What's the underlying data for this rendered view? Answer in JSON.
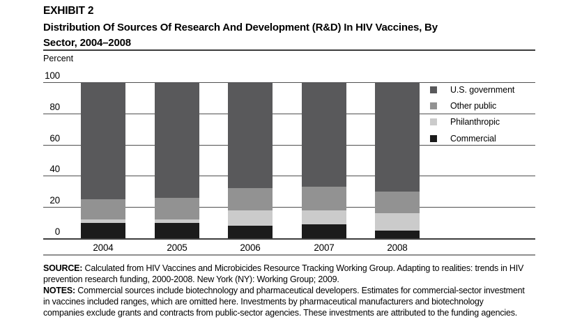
{
  "header": {
    "exhibit_label": "EXHIBIT 2",
    "title_line1": "Distribution Of Sources Of Research And Development (R&D) In HIV Vaccines, By",
    "title_line2": "Sector, 2004–2008"
  },
  "chart_data": {
    "type": "bar",
    "subtype": "stacked-percent",
    "title": "Distribution Of Sources Of Research And Development (R&D) In HIV Vaccines, By Sector, 2004–2008",
    "ylabel": "Percent",
    "ylim": [
      0,
      100
    ],
    "yticks": [
      0,
      20,
      40,
      60,
      80,
      100
    ],
    "grid": true,
    "legend_position": "top-right",
    "categories": [
      "2004",
      "2005",
      "2006",
      "2007",
      "2008"
    ],
    "series": [
      {
        "name": "Commercial",
        "color": "#1b1b1b",
        "values": [
          10,
          10,
          8,
          9,
          5
        ]
      },
      {
        "name": "Philanthropic",
        "color": "#cbcbcb",
        "values": [
          2,
          2,
          10,
          9,
          11
        ]
      },
      {
        "name": "Other public",
        "color": "#929292",
        "values": [
          13,
          14,
          14,
          15,
          14
        ]
      },
      {
        "name": "U.S. government",
        "color": "#59595b",
        "values": [
          75,
          74,
          68,
          67,
          70
        ]
      }
    ],
    "legend": [
      {
        "label": "U.S. government",
        "color": "#59595b"
      },
      {
        "label": "Other public",
        "color": "#929292"
      },
      {
        "label": "Philanthropic",
        "color": "#cbcbcb"
      },
      {
        "label": "Commercial",
        "color": "#1b1b1b"
      }
    ]
  },
  "style_colors": {
    "gridline": "#4f4f4f",
    "title_rule": "#3b3b3b",
    "bottom_rule": "#8f8f8f",
    "background": "#ffffff",
    "text": "#000000"
  },
  "footer": {
    "source_label": "SOURCE:",
    "source_lines": [
      "Calculated from HIV Vaccines and Microbicides Resource Tracking Working Group. Adapting to realities: trends in HIV",
      "prevention research funding, 2000-2008. New York (NY): Working Group; 2009."
    ],
    "notes_label": "NOTES:",
    "notes_lines": [
      "Commercial sources include biotechnology and pharmaceutical developers. Estimates for commercial-sector investment",
      "in vaccines included ranges, which are omitted here. Investments by pharmaceutical manufacturers and biotechnology",
      "companies exclude grants and contracts from public-sector agencies. These investments are attributed to the funding agencies."
    ]
  }
}
